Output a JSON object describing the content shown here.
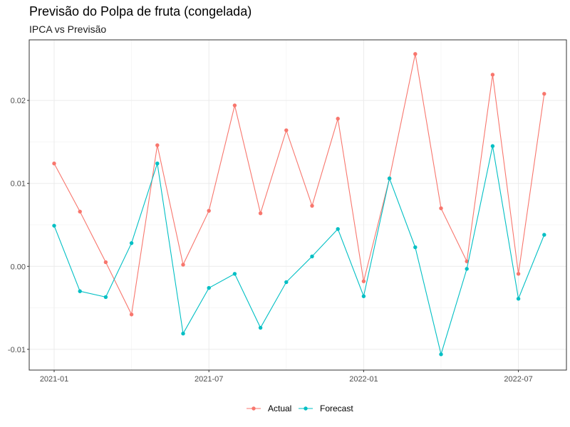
{
  "chart_data": {
    "type": "line",
    "title": "Previsão do Polpa de fruta (congelada)",
    "subtitle": "IPCA vs Previsão",
    "xlabel": "",
    "ylabel": "",
    "x": [
      "2021-01",
      "2021-02",
      "2021-03",
      "2021-04",
      "2021-05",
      "2021-06",
      "2021-07",
      "2021-08",
      "2021-09",
      "2021-10",
      "2021-11",
      "2021-12",
      "2022-01",
      "2022-02",
      "2022-03",
      "2022-04",
      "2022-05",
      "2022-06",
      "2022-07",
      "2022-08"
    ],
    "x_ticks": [
      "2021-01",
      "2021-07",
      "2022-01",
      "2022-07"
    ],
    "y_ticks": [
      -0.01,
      0.0,
      0.01,
      0.02
    ],
    "y_tick_labels": [
      "-0.01",
      "0.00",
      "0.01",
      "0.02"
    ],
    "ylim": [
      -0.0125,
      0.0273
    ],
    "grid": true,
    "legend_position": "bottom",
    "series": [
      {
        "name": "Actual",
        "color": "#F8766D",
        "values": [
          0.0124,
          0.0066,
          0.0005,
          -0.0058,
          0.0146,
          0.0002,
          0.0067,
          0.0194,
          0.0064,
          0.0164,
          0.0073,
          0.0178,
          -0.0018,
          0.0106,
          0.0256,
          0.007,
          0.0006,
          0.0231,
          -0.0009,
          0.0208
        ]
      },
      {
        "name": "Forecast",
        "color": "#00BFC4",
        "values": [
          0.0049,
          -0.003,
          -0.0037,
          0.0028,
          0.0124,
          -0.0081,
          -0.0026,
          -0.0009,
          -0.0074,
          -0.0019,
          0.0012,
          0.0045,
          -0.0036,
          0.0106,
          0.0023,
          -0.0106,
          -0.0003,
          0.0145,
          -0.0039,
          0.0038
        ]
      }
    ]
  }
}
